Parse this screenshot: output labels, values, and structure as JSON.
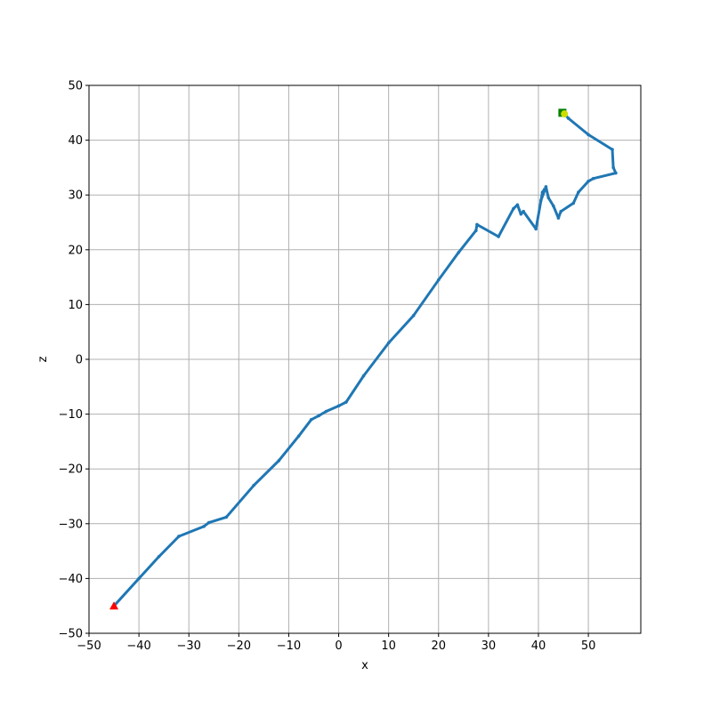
{
  "chart_data": {
    "type": "line",
    "title": "",
    "xlabel": "x",
    "ylabel": "z",
    "xlim": [
      -50,
      60.5
    ],
    "ylim": [
      -50,
      50
    ],
    "x_ticks": [
      -50,
      -40,
      -30,
      -20,
      -10,
      0,
      10,
      20,
      30,
      40,
      50
    ],
    "y_ticks": [
      -50,
      -40,
      -30,
      -20,
      -10,
      0,
      10,
      20,
      30,
      40,
      50
    ],
    "grid": true,
    "series": [
      {
        "color": "#1f77b4",
        "points": [
          [
            -45,
            -45
          ],
          [
            -40,
            -40
          ],
          [
            -36,
            -36
          ],
          [
            -32,
            -32.3
          ],
          [
            -27,
            -30.5
          ],
          [
            -26,
            -29.8
          ],
          [
            -22.5,
            -28.8
          ],
          [
            -17,
            -23
          ],
          [
            -12,
            -18.5
          ],
          [
            -8,
            -14
          ],
          [
            -5.5,
            -11
          ],
          [
            -4,
            -10.3
          ],
          [
            -2.5,
            -9.5
          ],
          [
            0,
            -8.5
          ],
          [
            1.5,
            -7.8
          ],
          [
            5,
            -3
          ],
          [
            10,
            3
          ],
          [
            15,
            8
          ],
          [
            20,
            14.5
          ],
          [
            24,
            19.5
          ],
          [
            27.5,
            23.5
          ],
          [
            27.7,
            24.6
          ],
          [
            32,
            22.4
          ],
          [
            35,
            27.5
          ],
          [
            35.8,
            28.2
          ],
          [
            36.5,
            26.5
          ],
          [
            37,
            27
          ],
          [
            39.5,
            23.8
          ],
          [
            40.8,
            30.5
          ],
          [
            41.2,
            31
          ],
          [
            40.5,
            29
          ],
          [
            41.5,
            31.5
          ],
          [
            42,
            29.5
          ],
          [
            43,
            28
          ],
          [
            44,
            25.8
          ],
          [
            44.5,
            27
          ],
          [
            47,
            28.5
          ],
          [
            48,
            30.5
          ],
          [
            50,
            32.5
          ],
          [
            51,
            33
          ],
          [
            55.5,
            34
          ],
          [
            55,
            35
          ],
          [
            54.8,
            38.3
          ],
          [
            50,
            41
          ],
          [
            46,
            44
          ],
          [
            45,
            45
          ]
        ]
      }
    ],
    "markers": [
      {
        "shape": "triangle",
        "x": -45,
        "y": -45,
        "color": "#ff0000"
      },
      {
        "shape": "square",
        "x": 44.8,
        "y": 45,
        "color": "#008000"
      },
      {
        "shape": "circle",
        "x": 45.2,
        "y": 44.8,
        "color": "#ccdd00"
      }
    ]
  }
}
